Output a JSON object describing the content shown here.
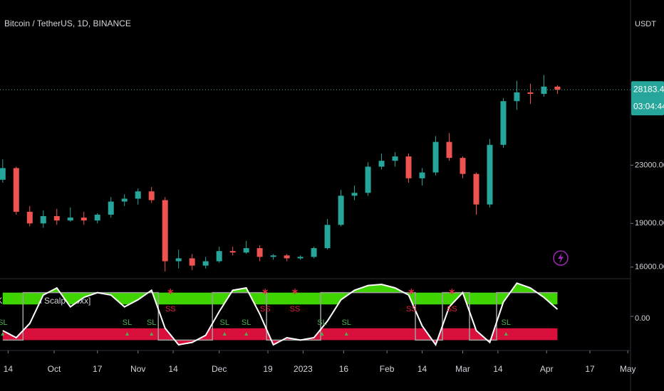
{
  "chart_data": [
    {
      "type": "candlestick",
      "title": "Bitcoin / TetherUS, 1D, BINANCE",
      "axis_label": "USDT",
      "x": [
        -2,
        3,
        8,
        13,
        18,
        23,
        28,
        33,
        38,
        43,
        48,
        53,
        58,
        63,
        68,
        73,
        78,
        83,
        88,
        93,
        98,
        103,
        108,
        113,
        118,
        123,
        128,
        133,
        138,
        143,
        148,
        153,
        158,
        163,
        168,
        173,
        178,
        183,
        188,
        193,
        198,
        203
      ],
      "open": [
        22000,
        22800,
        19800,
        19000,
        19500,
        19200,
        19400,
        19200,
        19600,
        20500,
        20700,
        21200,
        20600,
        16400,
        16600,
        16100,
        16400,
        17100,
        17000,
        17300,
        16700,
        16800,
        16600,
        16700,
        17300,
        18900,
        20900,
        21100,
        22900,
        23300,
        23600,
        22100,
        22500,
        24600,
        23500,
        22400,
        20300,
        24400,
        27400,
        28000,
        27900,
        28400
      ],
      "high": [
        23400,
        22900,
        20200,
        19900,
        20000,
        20100,
        19800,
        19700,
        20800,
        21000,
        21400,
        21500,
        20800,
        17200,
        16900,
        16700,
        17400,
        17400,
        17800,
        17500,
        16900,
        16900,
        16800,
        17400,
        19300,
        21300,
        21600,
        23200,
        23800,
        23900,
        23800,
        22800,
        25000,
        25200,
        23600,
        22500,
        24800,
        27600,
        28800,
        28600,
        29200,
        28500
      ],
      "low": [
        21800,
        19600,
        18800,
        18700,
        18900,
        19100,
        18900,
        19000,
        19400,
        20200,
        20300,
        20400,
        15700,
        15900,
        15800,
        15900,
        16300,
        16800,
        16900,
        16400,
        16500,
        16400,
        16500,
        16600,
        17200,
        18800,
        20600,
        20900,
        22700,
        22900,
        21800,
        21600,
        22300,
        23300,
        22100,
        19600,
        20100,
        24200,
        26800,
        27200,
        27700,
        27900
      ],
      "close": [
        22800,
        19800,
        19000,
        19500,
        19200,
        19400,
        19200,
        19600,
        20500,
        20700,
        21200,
        20600,
        16400,
        16600,
        16100,
        16400,
        17100,
        17000,
        17300,
        16700,
        16800,
        16600,
        16700,
        17300,
        18900,
        20900,
        21100,
        22900,
        23300,
        23600,
        22100,
        22500,
        24600,
        23500,
        22400,
        20300,
        24400,
        27400,
        28000,
        27900,
        28400,
        28183.41
      ],
      "up_color": "#26a69a",
      "down_color": "#ef5350",
      "last_price": 28183.41,
      "countdown": "03:04:44",
      "xlim": [
        -3,
        230
      ],
      "xticks": [
        {
          "value": 0,
          "label": "14"
        },
        {
          "value": 17,
          "label": "Oct"
        },
        {
          "value": 33,
          "label": "17"
        },
        {
          "value": 48,
          "label": "Nov"
        },
        {
          "value": 61,
          "label": "14"
        },
        {
          "value": 78,
          "label": "Dec"
        },
        {
          "value": 96,
          "label": "19"
        },
        {
          "value": 109,
          "label": "2023"
        },
        {
          "value": 124,
          "label": "16"
        },
        {
          "value": 140,
          "label": "Feb"
        },
        {
          "value": 153,
          "label": "14"
        },
        {
          "value": 168,
          "label": "Mar"
        },
        {
          "value": 181,
          "label": "14"
        },
        {
          "value": 199,
          "label": "Apr"
        },
        {
          "value": 215,
          "label": "17"
        },
        {
          "value": 229,
          "label": "May"
        }
      ],
      "ylim": [
        15300,
        34350
      ],
      "yticks": [
        {
          "value": 16000,
          "label": "16000.00"
        },
        {
          "value": 19000,
          "label": "19000.00"
        },
        {
          "value": 23000,
          "label": "23000.00"
        }
      ]
    },
    {
      "type": "trend-scalp",
      "title": "GKD-C Trend Scalp [Loxx]",
      "x": [
        -2,
        3,
        8,
        13,
        18,
        23,
        28,
        33,
        38,
        43,
        48,
        53,
        58,
        63,
        68,
        73,
        78,
        83,
        88,
        93,
        98,
        103,
        108,
        113,
        118,
        123,
        128,
        133,
        138,
        143,
        148,
        153,
        158,
        163,
        168,
        173,
        178,
        183,
        188,
        193,
        198,
        203
      ],
      "line_values": [
        -0.6,
        -0.9,
        -0.3,
        0.9,
        1.2,
        0.4,
        0.8,
        1.0,
        0.9,
        0.4,
        0.7,
        1.1,
        -0.5,
        -1.2,
        -1.1,
        -0.8,
        0.2,
        1.1,
        1.2,
        0.1,
        -1.2,
        -0.9,
        -1.0,
        -0.9,
        -0.2,
        0.7,
        1.1,
        1.3,
        1.35,
        1.2,
        0.9,
        -0.4,
        -1.2,
        0.4,
        1.0,
        -0.6,
        -1.1,
        0.6,
        1.4,
        1.2,
        0.8,
        0.3
      ],
      "step_values": [
        -1,
        -1,
        1,
        1,
        1,
        1,
        1,
        1,
        1,
        1,
        1,
        1,
        -1,
        -1,
        -1,
        -1,
        1,
        1,
        1,
        1,
        -1,
        -1,
        -1,
        -1,
        1,
        1,
        1,
        1,
        1,
        1,
        1,
        -1,
        -1,
        1,
        1,
        -1,
        -1,
        1,
        1,
        1,
        1,
        1
      ],
      "line_color": "#ffffff",
      "step_color": "#9e9e9e",
      "up_fill": "#3fd400",
      "down_fill": "#d9103c",
      "signals": [
        {
          "x": -2,
          "label": "SL"
        },
        {
          "x": 44,
          "label": "SL"
        },
        {
          "x": 53,
          "label": "SL"
        },
        {
          "x": 60,
          "label": "SS"
        },
        {
          "x": 80,
          "label": "SL"
        },
        {
          "x": 88,
          "label": "SL"
        },
        {
          "x": 95,
          "label": "SS"
        },
        {
          "x": 106,
          "label": "SS"
        },
        {
          "x": 116,
          "label": "SL"
        },
        {
          "x": 125,
          "label": "SL"
        },
        {
          "x": 149,
          "label": "SS"
        },
        {
          "x": 164,
          "label": "SS"
        },
        {
          "x": 184,
          "label": "SL"
        }
      ],
      "long_color": "#4caf50",
      "short_color": "#e0263e",
      "ylim": [
        -1.5,
        1.5
      ],
      "yticks": [
        {
          "value": 0,
          "label": "0.00"
        }
      ]
    }
  ]
}
